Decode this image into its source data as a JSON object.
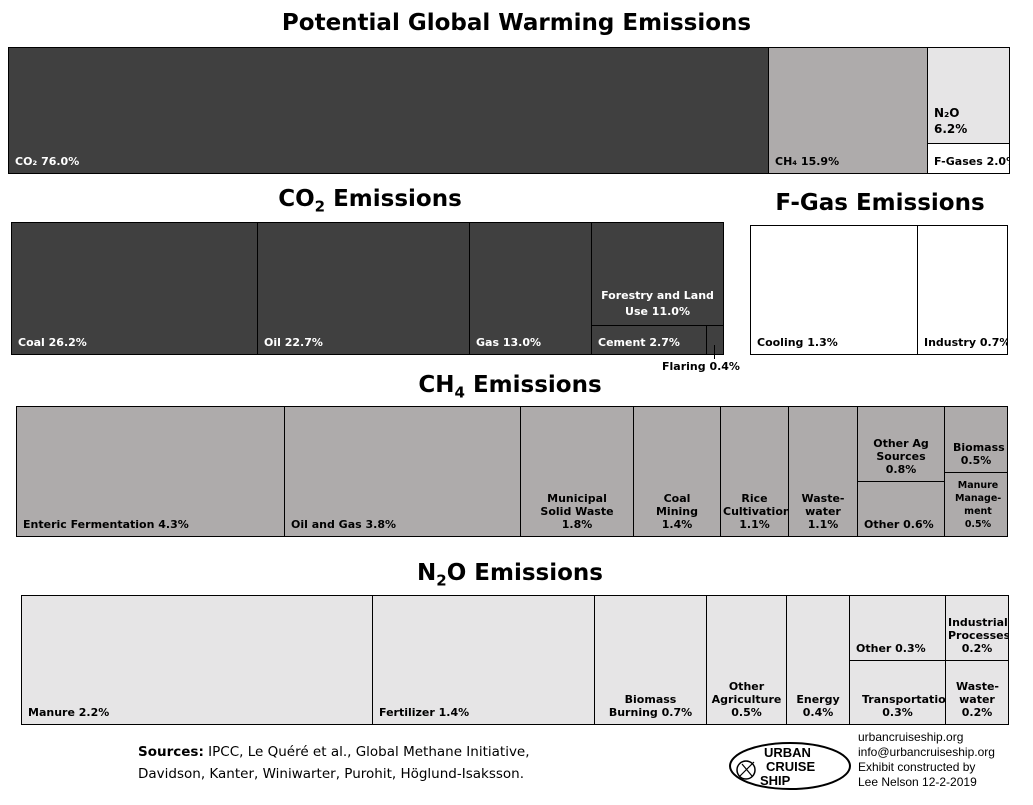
{
  "titles": {
    "main": "Potential Global Warming Emissions",
    "co2_prefix": "CO",
    "co2_sub": "2",
    "co2_suffix": " Emissions",
    "fgas": "F-Gas Emissions",
    "ch4_prefix": "CH",
    "ch4_sub": "4",
    "ch4_suffix": " Emissions",
    "n2o_prefix": "N",
    "n2o_sub": "2",
    "n2o_suffix": "O Emissions"
  },
  "chart_data": [
    {
      "type": "treemap",
      "title": "Potential Global Warming Emissions",
      "categories": [
        "CO₂",
        "CH₄",
        "N₂O",
        "F-Gases"
      ],
      "values": [
        76.0,
        15.9,
        6.2,
        2.0
      ],
      "labels": [
        "CO₂ 76.0%",
        "CH₄ 15.9%",
        "N₂O 6.2%",
        "F-Gases 2.0%"
      ]
    },
    {
      "type": "treemap",
      "title": "CO2 Emissions",
      "categories": [
        "Coal",
        "Oil",
        "Gas",
        "Forestry and Land Use",
        "Cement",
        "Flaring"
      ],
      "values": [
        26.2,
        22.7,
        13.0,
        11.0,
        2.7,
        0.4
      ],
      "labels": [
        "Coal 26.2%",
        "Oil 22.7%",
        "Gas 13.0%",
        "Forestry and Land Use 11.0%",
        "Cement 2.7%",
        "Flaring 0.4%"
      ]
    },
    {
      "type": "treemap",
      "title": "F-Gas Emissions",
      "categories": [
        "Cooling",
        "Industry"
      ],
      "values": [
        1.3,
        0.7
      ],
      "labels": [
        "Cooling 1.3%",
        "Industry 0.7%"
      ]
    },
    {
      "type": "treemap",
      "title": "CH4 Emissions",
      "categories": [
        "Enteric Fermentation",
        "Oil and Gas",
        "Municipal Solid Waste",
        "Coal Mining",
        "Rice Cultivation",
        "Waste-water",
        "Other Ag Sources",
        "Other",
        "Biomass",
        "Manure Management"
      ],
      "values": [
        4.3,
        3.8,
        1.8,
        1.4,
        1.1,
        1.1,
        0.8,
        0.6,
        0.5,
        0.5
      ],
      "labels": [
        "Enteric Fermentation 4.3%",
        "Oil and Gas 3.8%",
        "Municipal Solid Waste 1.8%",
        "Coal Mining 1.4%",
        "Rice Cultivation 1.1%",
        "Waste- water 1.1%",
        "Other Ag Sources 0.8%",
        "Other 0.6%",
        "Biomass 0.5%",
        "Manure Manage- ment 0.5%"
      ]
    },
    {
      "type": "treemap",
      "title": "N2O Emissions",
      "categories": [
        "Manure",
        "Fertilizer",
        "Biomass Burning",
        "Other Agriculture",
        "Energy",
        "Other",
        "Transportation",
        "Industrial Processes",
        "Waste-water"
      ],
      "values": [
        2.2,
        1.4,
        0.7,
        0.5,
        0.4,
        0.3,
        0.3,
        0.2,
        0.2
      ],
      "labels": [
        "Manure 2.2%",
        "Fertilizer 1.4%",
        "Biomass Burning 0.7%",
        "Other Agriculture 0.5%",
        "Energy 0.4%",
        "Other 0.3%",
        "Transportation 0.3%",
        "Industrial Processes 0.2%",
        "Waste- water 0.2%"
      ]
    }
  ],
  "footer": {
    "sources_bold": "Sources:",
    "sources_line1": " IPCC, Le Quéré et al., Global Methane Initiative,",
    "sources_line2": "Davidson, Kanter, Winiwarter, Purohit, Höglund-Isaksson.",
    "contact": [
      "urbancruiseship.org",
      "info@urbancruiseship.org",
      "Exhibit constructed by",
      "Lee Nelson 12-2-2019"
    ],
    "logo_text": [
      "URBAN",
      "CRUISE",
      "SHIP"
    ]
  },
  "colors": {
    "co2": "#404040",
    "ch4": "#aeabab",
    "n2o": "#e6e5e6",
    "fgas": "#ffffff"
  }
}
